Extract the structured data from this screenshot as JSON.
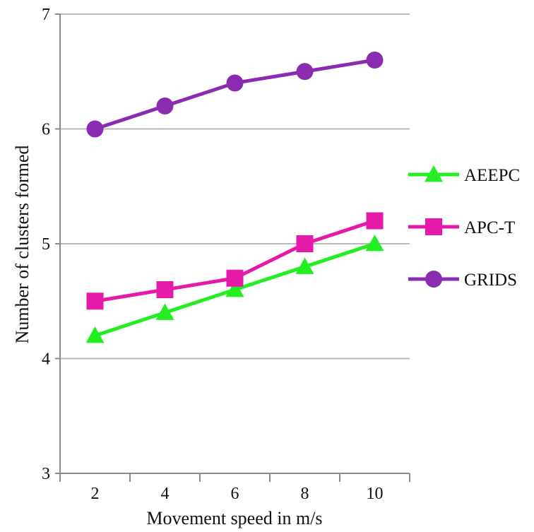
{
  "chart_data": {
    "type": "line",
    "xlabel": "Movement speed in m/s",
    "ylabel": "Number of clusters formed",
    "x": [
      2,
      4,
      6,
      8,
      10
    ],
    "ylim": [
      3,
      7
    ],
    "yticks": [
      3,
      4,
      5,
      6,
      7
    ],
    "grid": "horizontal",
    "legend_position": "right",
    "series": [
      {
        "name": "AEEPC",
        "color": "#22ee22",
        "marker": "triangle",
        "values": [
          4.2,
          4.4,
          4.6,
          4.8,
          5.0
        ]
      },
      {
        "name": "APC-T",
        "color": "#e61aa8",
        "marker": "square",
        "values": [
          4.5,
          4.6,
          4.7,
          5.0,
          5.2
        ]
      },
      {
        "name": "GRIDS",
        "color": "#8a2cb0",
        "marker": "circle",
        "values": [
          6.0,
          6.2,
          6.4,
          6.5,
          6.6
        ]
      }
    ]
  }
}
